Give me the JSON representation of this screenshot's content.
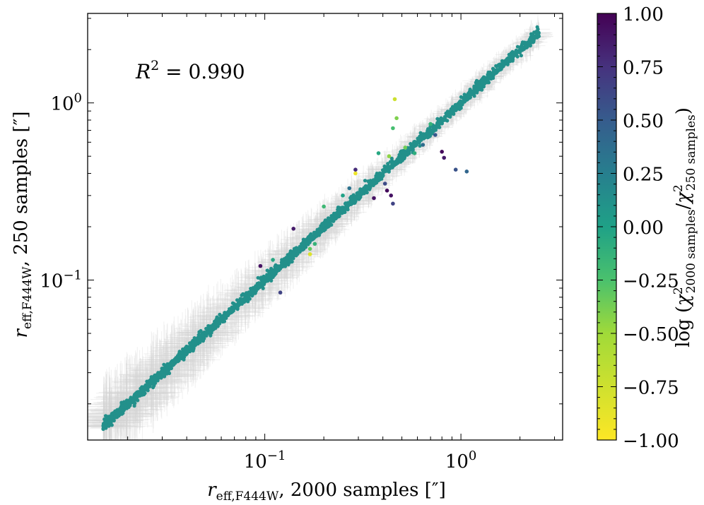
{
  "chart_data": {
    "type": "scatter",
    "xscale": "log",
    "yscale": "log",
    "xlim": [
      0.0125,
      3.3
    ],
    "ylim": [
      0.0125,
      3.2
    ],
    "xlabel": {
      "base": "r",
      "sub": "eff,F444W",
      "rest": ", 2000 samples [″]"
    },
    "ylabel": {
      "base": "r",
      "sub": "eff,F444W",
      "rest": ", 250 samples [″]"
    },
    "x_tick_labels": [
      {
        "value": 0.1,
        "mant": "10",
        "exp": "−1"
      },
      {
        "value": 1.0,
        "mant": "10",
        "exp": "0"
      }
    ],
    "y_tick_labels": [
      {
        "value": 0.1,
        "mant": "10",
        "exp": "−1"
      },
      {
        "value": 1.0,
        "mant": "10",
        "exp": "0"
      }
    ],
    "annotation": {
      "var": "R",
      "sup": "2",
      "text": " = 0.990"
    },
    "fit_r2": 0.99,
    "colorbar": {
      "colormap": "viridis_r",
      "range": [
        -1.0,
        1.0
      ],
      "tick_labels": [
        "1.00",
        "0.75",
        "0.50",
        "0.25",
        "0.00",
        "−0.25",
        "−0.50",
        "−0.75",
        "−1.00"
      ],
      "tick_values": [
        1.0,
        0.75,
        0.5,
        0.25,
        0.0,
        -0.25,
        -0.5,
        -0.75,
        -1.0
      ],
      "label": "log (χ²2000 samples/χ²250 samples)"
    },
    "main_trend": {
      "description": "dense band of points along y = x, colour value ≈ 0.0",
      "x_range": [
        0.015,
        2.5
      ],
      "count": 2400
    },
    "error_bar_color": "#d3d3d3",
    "outliers": [
      {
        "x": 0.46,
        "y": 1.05,
        "c": -0.85
      },
      {
        "x": 0.47,
        "y": 0.82,
        "c": -0.6
      },
      {
        "x": 0.45,
        "y": 0.72,
        "c": -0.4
      },
      {
        "x": 0.52,
        "y": 0.56,
        "c": -0.55
      },
      {
        "x": 0.38,
        "y": 0.52,
        "c": -0.2
      },
      {
        "x": 0.43,
        "y": 0.5,
        "c": -0.65
      },
      {
        "x": 0.29,
        "y": 0.4,
        "c": -0.95
      },
      {
        "x": 0.29,
        "y": 0.42,
        "c": 0.75
      },
      {
        "x": 0.36,
        "y": 0.29,
        "c": 0.9
      },
      {
        "x": 0.42,
        "y": 0.32,
        "c": 0.95
      },
      {
        "x": 0.44,
        "y": 0.3,
        "c": 0.9
      },
      {
        "x": 0.45,
        "y": 0.27,
        "c": 0.6
      },
      {
        "x": 0.41,
        "y": 0.35,
        "c": 0.55
      },
      {
        "x": 0.8,
        "y": 0.53,
        "c": 0.95
      },
      {
        "x": 0.82,
        "y": 0.49,
        "c": 0.85
      },
      {
        "x": 0.94,
        "y": 0.42,
        "c": 0.5
      },
      {
        "x": 1.07,
        "y": 0.41,
        "c": 0.35
      },
      {
        "x": 0.64,
        "y": 0.58,
        "c": 0.3
      },
      {
        "x": 0.74,
        "y": 0.66,
        "c": 0.45
      },
      {
        "x": 0.7,
        "y": 0.76,
        "c": -0.3
      },
      {
        "x": 0.17,
        "y": 0.14,
        "c": -0.9
      },
      {
        "x": 0.17,
        "y": 0.15,
        "c": -0.5
      },
      {
        "x": 0.18,
        "y": 0.16,
        "c": -0.3
      },
      {
        "x": 0.14,
        "y": 0.195,
        "c": 0.85
      },
      {
        "x": 0.095,
        "y": 0.12,
        "c": 0.9
      },
      {
        "x": 0.11,
        "y": 0.13,
        "c": -0.2
      },
      {
        "x": 0.25,
        "y": 0.3,
        "c": -0.15
      },
      {
        "x": 0.12,
        "y": 0.085,
        "c": 0.6
      },
      {
        "x": 0.27,
        "y": 0.33,
        "c": 0.25
      },
      {
        "x": 0.2,
        "y": 0.26,
        "c": -0.35
      },
      {
        "x": 0.58,
        "y": 0.52,
        "c": -0.25
      }
    ]
  }
}
